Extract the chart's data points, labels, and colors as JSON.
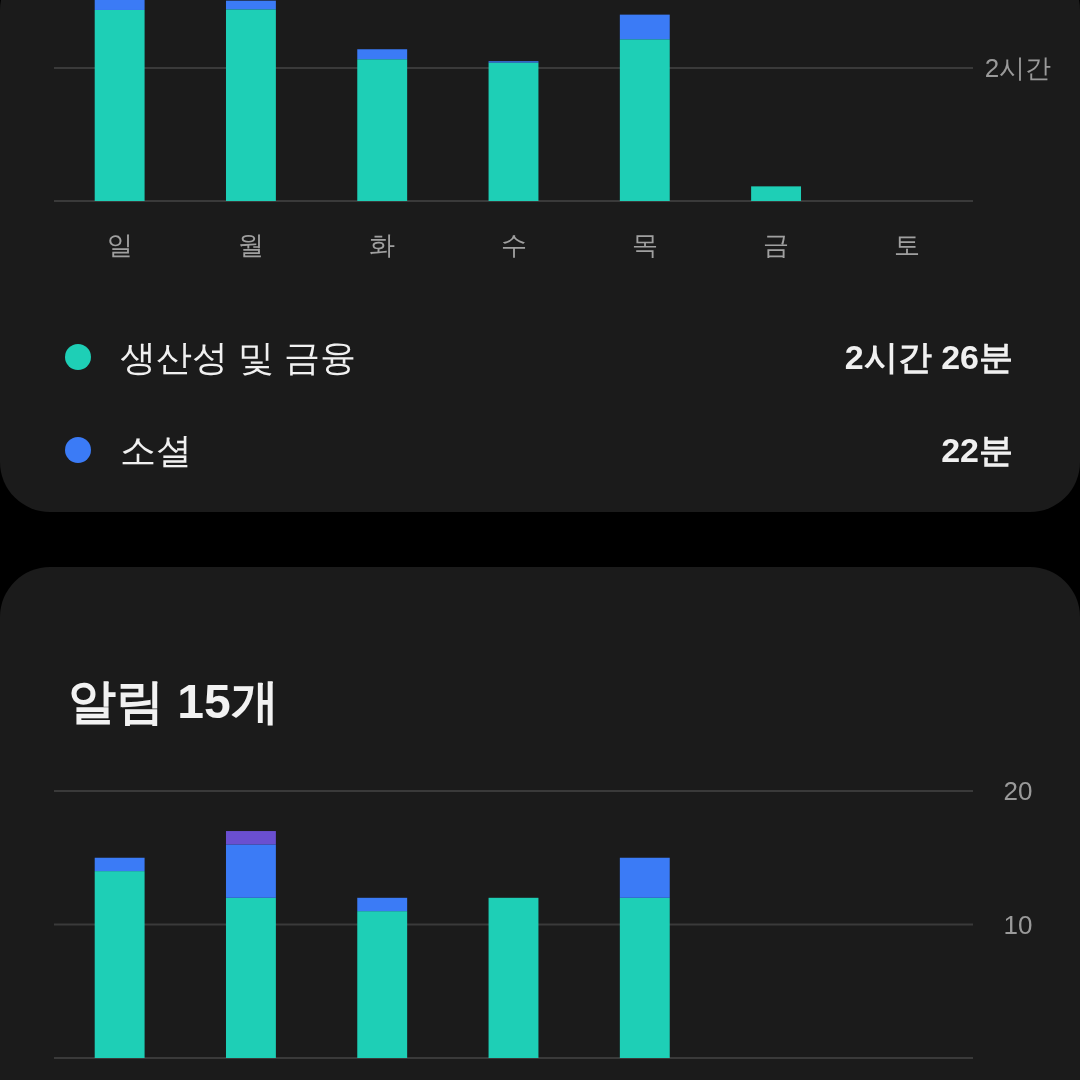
{
  "chart_data": [
    {
      "type": "bar",
      "stacked": true,
      "categories": [
        "일",
        "월",
        "화",
        "수",
        "목",
        "금",
        "토"
      ],
      "series": [
        {
          "name": "생산성 및 금융",
          "color": "#1ecfb6",
          "values": [
            2.87,
            2.88,
            2.13,
            2.08,
            2.43,
            0.22,
            0
          ]
        },
        {
          "name": "소셜",
          "color": "#3b7bf6",
          "values": [
            0.15,
            0.13,
            0.15,
            0.02,
            0.37,
            0,
            0
          ]
        }
      ],
      "ylim": [
        0,
        3.02
      ],
      "yticks": [
        {
          "value": 2,
          "label": "2시간"
        }
      ],
      "grid": "y",
      "legend": "bottom",
      "annotations": [
        "2시간 26분",
        "22분"
      ]
    },
    {
      "type": "bar",
      "stacked": true,
      "title": "알림 15개",
      "categories": [
        null,
        null,
        null,
        null,
        null,
        null,
        null
      ],
      "series": [
        {
          "color": "#1ecfb6",
          "values": [
            14,
            12,
            11,
            12,
            12,
            0,
            0
          ]
        },
        {
          "color": "#3b7bf6",
          "values": [
            1,
            4,
            1,
            0,
            3,
            0,
            0
          ]
        },
        {
          "color": "#6a4fd0",
          "values": [
            0,
            1,
            0,
            0,
            0,
            0,
            0
          ]
        }
      ],
      "ylim": [
        0,
        20
      ],
      "yticks": [
        10,
        20
      ],
      "grid": "y",
      "tick_labels": "y"
    }
  ]
}
